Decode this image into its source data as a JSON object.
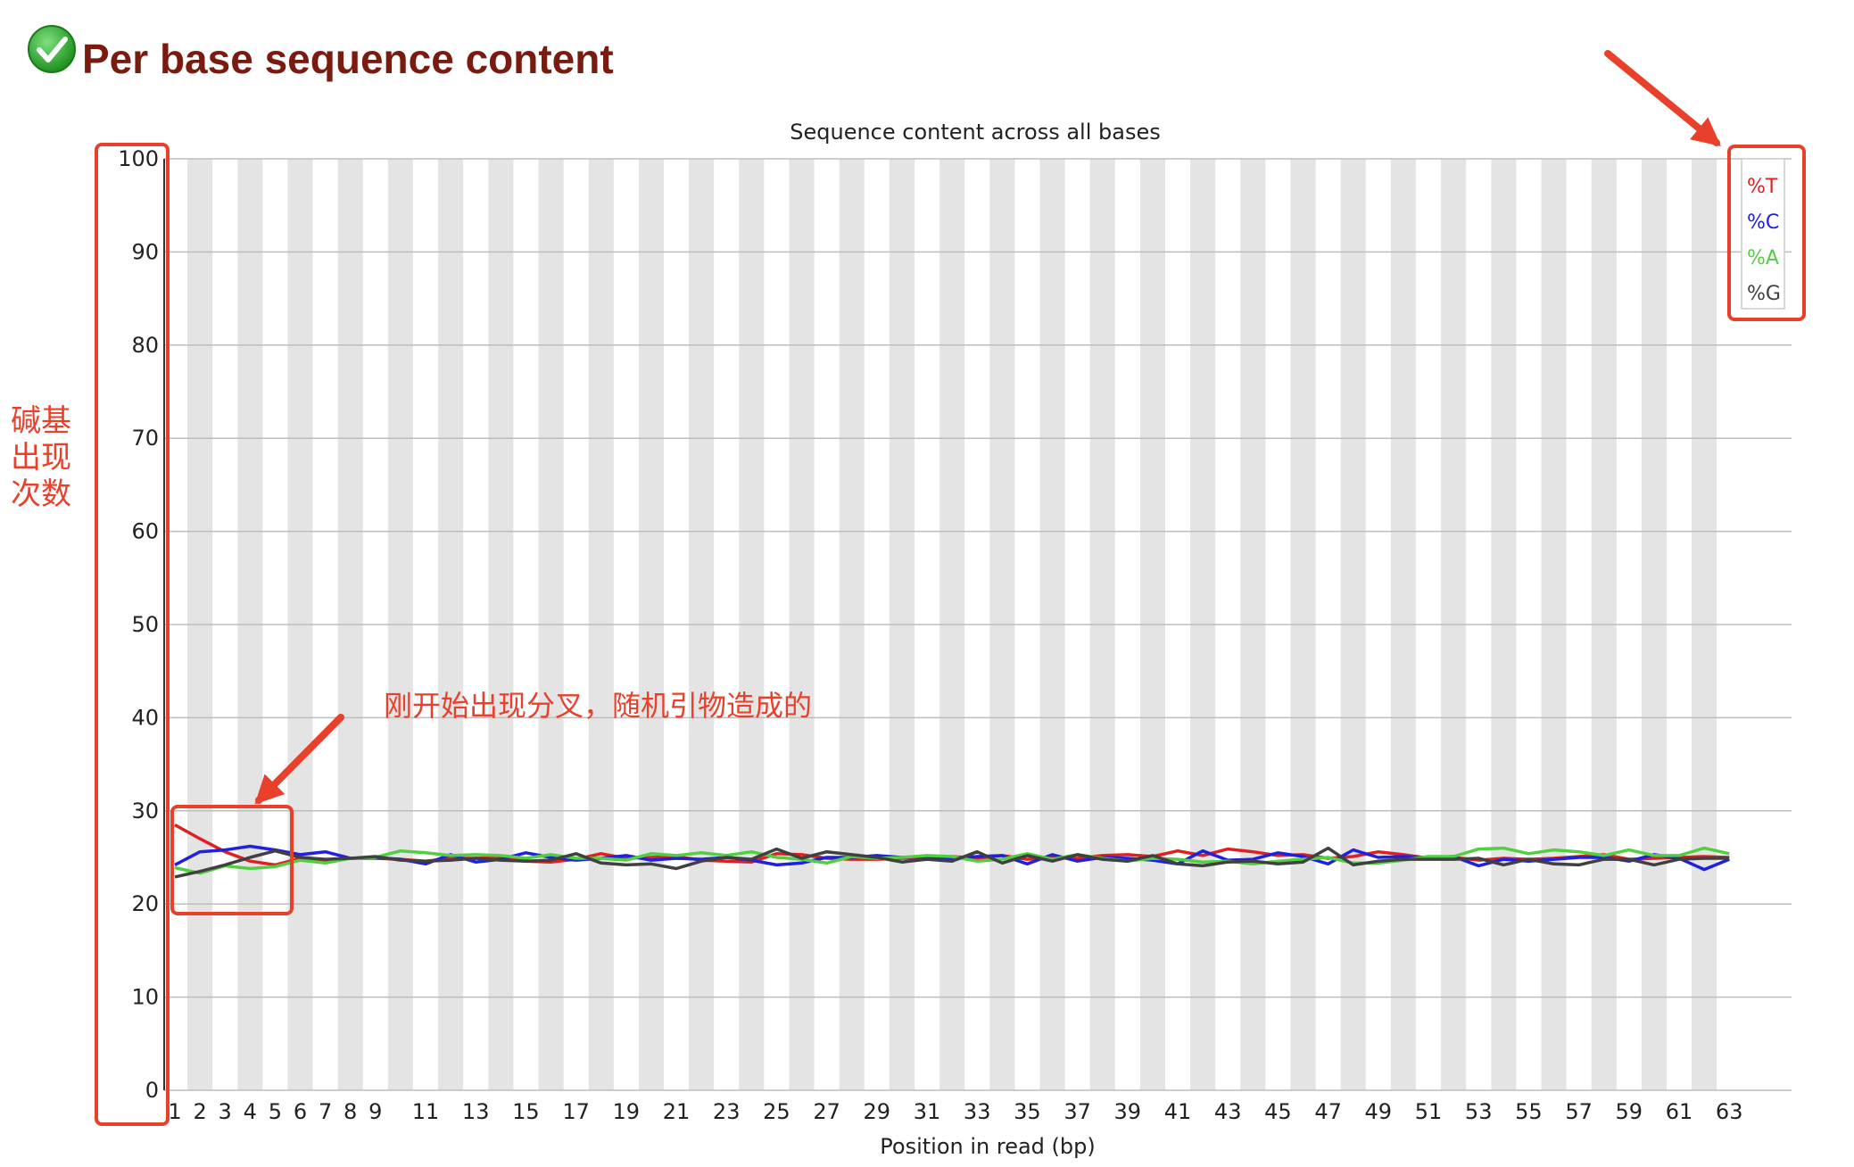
{
  "header": {
    "title": "Per base sequence content",
    "status_icon": "check-circle-icon",
    "status_color": "#2e9e2e",
    "title_color": "#7a1b10"
  },
  "annotations": {
    "y_axis_note": [
      "碱基",
      "出现",
      "次数"
    ],
    "divergence_note": "刚开始出现分叉，随机引物造成的",
    "color": "#e8402a"
  },
  "chart_data": {
    "type": "line",
    "title": "Sequence content across all bases",
    "xlabel": "Position in read (bp)",
    "ylabel": "",
    "ylim": [
      0,
      100
    ],
    "yticks": [
      0,
      10,
      20,
      30,
      40,
      50,
      60,
      70,
      80,
      90,
      100
    ],
    "x": [
      1,
      2,
      3,
      4,
      5,
      6,
      7,
      8,
      9,
      10,
      11,
      12,
      13,
      14,
      15,
      16,
      17,
      18,
      19,
      20,
      21,
      22,
      23,
      24,
      25,
      26,
      27,
      28,
      29,
      30,
      31,
      32,
      33,
      34,
      35,
      36,
      37,
      38,
      39,
      40,
      41,
      42,
      43,
      44,
      45,
      46,
      47,
      48,
      49,
      50,
      51,
      52,
      53,
      54,
      55,
      56,
      57,
      58,
      59,
      60,
      61,
      62,
      63
    ],
    "xtick_labels": [
      "1",
      "2",
      "3",
      "4",
      "5",
      "6",
      "7",
      "8",
      "9",
      "11",
      "13",
      "15",
      "17",
      "19",
      "21",
      "23",
      "25",
      "27",
      "29",
      "31",
      "33",
      "35",
      "37",
      "39",
      "41",
      "43",
      "45",
      "47",
      "49",
      "51",
      "53",
      "55",
      "57",
      "59",
      "61",
      "63"
    ],
    "grid": true,
    "legend_position": "top-right",
    "series": [
      {
        "name": "%T",
        "color": "#e02020",
        "values": [
          28.5,
          27,
          25.6,
          24.6,
          24.2,
          24.9,
          24.7,
          24.9,
          24.9,
          24.8,
          24.6,
          24.9,
          24.9,
          25,
          24.6,
          24.5,
          24.8,
          25.4,
          24.9,
          25,
          25.1,
          24.7,
          24.6,
          24.5,
          25.4,
          25.3,
          24.9,
          24.8,
          24.8,
          24.9,
          24.9,
          25.1,
          24.9,
          25.2,
          24.8,
          25,
          24.9,
          25.2,
          25.3,
          25.1,
          25.7,
          25.2,
          25.9,
          25.6,
          25.2,
          25.3,
          24.9,
          25.1,
          25.6,
          25.3,
          24.9,
          25,
          24.7,
          24.9,
          24.8,
          24.9,
          25.1,
          25.3,
          24.8,
          24.9,
          25,
          25.1,
          25
        ]
      },
      {
        "name": "%C",
        "color": "#2020e0",
        "values": [
          24.2,
          25.6,
          25.8,
          26.2,
          25.8,
          25.3,
          25.6,
          24.9,
          25,
          24.8,
          24.3,
          25.3,
          24.5,
          24.8,
          25.5,
          25,
          24.7,
          24.9,
          25.2,
          24.7,
          24.9,
          24.8,
          25,
          24.7,
          24.2,
          24.4,
          25,
          25,
          25.2,
          25,
          25.1,
          24.9,
          25.1,
          25.2,
          24.3,
          25.3,
          24.6,
          25,
          24.9,
          24.7,
          24.3,
          25.7,
          24.7,
          24.8,
          25.5,
          25.1,
          24.3,
          25.8,
          25,
          25.1,
          25,
          25.1,
          24.1,
          24.8,
          24.6,
          24.8,
          25,
          25,
          24.6,
          25.3,
          24.9,
          23.7,
          24.8
        ]
      },
      {
        "name": "%A",
        "color": "#50d040",
        "values": [
          23.9,
          23.3,
          24.1,
          23.8,
          24,
          24.7,
          24.4,
          24.9,
          25,
          25.7,
          25.5,
          25.2,
          25.3,
          25.2,
          24.9,
          25.3,
          24.9,
          24.9,
          24.7,
          25.4,
          25.2,
          25.5,
          25.2,
          25.6,
          25,
          24.8,
          24.4,
          25.1,
          24.9,
          25,
          25.2,
          25.1,
          24.6,
          24.8,
          25.4,
          24.8,
          25.3,
          24.9,
          24.6,
          24.9,
          24.8,
          24.5,
          24.6,
          24.3,
          24.6,
          24.8,
          25,
          24.4,
          24.4,
          24.7,
          25.1,
          25.1,
          25.9,
          26,
          25.4,
          25.8,
          25.6,
          25.2,
          25.8,
          25.2,
          25.2,
          26,
          25.4
        ]
      },
      {
        "name": "%G",
        "color": "#404040",
        "values": [
          22.9,
          23.5,
          24.2,
          25,
          25.7,
          25,
          24.8,
          24.9,
          25.1,
          24.7,
          24.6,
          24.7,
          24.9,
          24.7,
          24.6,
          24.7,
          25.4,
          24.4,
          24.2,
          24.3,
          23.8,
          24.6,
          25,
          24.8,
          25.9,
          24.9,
          25.6,
          25.3,
          25,
          24.5,
          24.8,
          24.6,
          25.6,
          24.4,
          25.2,
          24.6,
          25.3,
          24.8,
          24.6,
          25.2,
          24.3,
          24.1,
          24.5,
          24.6,
          24.3,
          24.5,
          26,
          24.2,
          24.6,
          24.8,
          24.8,
          24.8,
          24.9,
          24.2,
          24.8,
          24.3,
          24.2,
          24.8,
          24.8,
          24.2,
          24.8,
          24.9,
          24.9
        ]
      }
    ]
  }
}
